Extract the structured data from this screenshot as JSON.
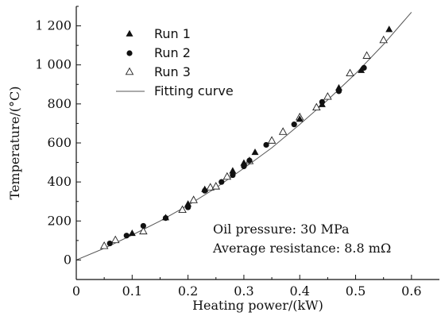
{
  "chart_data": {
    "type": "scatter",
    "xlabel": "Heating power/(kW)",
    "ylabel": "Temperature/(°C)",
    "xlim": [
      0,
      0.65
    ],
    "ylim": [
      -100,
      1300
    ],
    "x_ticks": [
      {
        "v": 0,
        "label": "0"
      },
      {
        "v": 0.1,
        "label": "0.1"
      },
      {
        "v": 0.2,
        "label": "0.2"
      },
      {
        "v": 0.3,
        "label": "0.3"
      },
      {
        "v": 0.4,
        "label": "0.4"
      },
      {
        "v": 0.5,
        "label": "0.5"
      },
      {
        "v": 0.6,
        "label": "0.6"
      }
    ],
    "y_ticks": [
      {
        "v": 0,
        "label": "0"
      },
      {
        "v": 200,
        "label": "200"
      },
      {
        "v": 400,
        "label": "400"
      },
      {
        "v": 600,
        "label": "600"
      },
      {
        "v": 800,
        "label": "800"
      },
      {
        "v": 1000,
        "label": "1 000"
      },
      {
        "v": 1200,
        "label": "1 200"
      }
    ],
    "grid": false,
    "legend_position": "top-left",
    "series": [
      {
        "name": "Run 1",
        "marker": "filled-triangle",
        "x": [
          0.1,
          0.16,
          0.2,
          0.23,
          0.28,
          0.3,
          0.32,
          0.4,
          0.44,
          0.47,
          0.51,
          0.56
        ],
        "y": [
          135,
          215,
          285,
          360,
          455,
          495,
          550,
          720,
          795,
          880,
          970,
          1180
        ]
      },
      {
        "name": "Run 2",
        "marker": "filled-circle",
        "x": [
          0.06,
          0.09,
          0.12,
          0.16,
          0.2,
          0.23,
          0.26,
          0.28,
          0.3,
          0.31,
          0.34,
          0.39,
          0.44,
          0.47,
          0.515
        ],
        "y": [
          85,
          125,
          175,
          215,
          270,
          355,
          400,
          435,
          480,
          510,
          590,
          695,
          810,
          865,
          985
        ]
      },
      {
        "name": "Run 3",
        "marker": "open-triangle",
        "x": [
          0.05,
          0.07,
          0.12,
          0.19,
          0.21,
          0.24,
          0.25,
          0.27,
          0.31,
          0.35,
          0.37,
          0.4,
          0.43,
          0.45,
          0.49,
          0.52,
          0.55
        ],
        "y": [
          70,
          100,
          145,
          255,
          305,
          370,
          375,
          425,
          505,
          610,
          655,
          730,
          780,
          835,
          955,
          1045,
          1125
        ]
      },
      {
        "name": "Fitting curve",
        "type": "line",
        "x": [
          0,
          0.05,
          0.1,
          0.15,
          0.2,
          0.25,
          0.3,
          0.35,
          0.4,
          0.45,
          0.5,
          0.55,
          0.6
        ],
        "y": [
          0,
          60,
          128,
          200,
          280,
          370,
          470,
          575,
          695,
          820,
          955,
          1105,
          1270
        ]
      }
    ],
    "annotations": [
      "Oil pressure: 30 MPa",
      "Average resistance: 8.8 mΩ"
    ]
  }
}
